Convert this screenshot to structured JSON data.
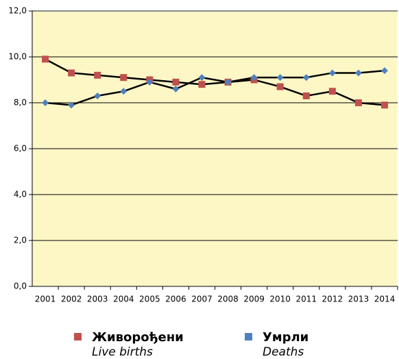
{
  "chart_data": {
    "type": "line",
    "categories": [
      "2001",
      "2002",
      "2003",
      "2004",
      "2005",
      "2006",
      "2007",
      "2008",
      "2009",
      "2010",
      "2011",
      "2012",
      "2013",
      "2014"
    ],
    "series": [
      {
        "name": "Живорођени",
        "name_en": "Live births",
        "color": "#c0504d",
        "marker": "square",
        "values": [
          9.9,
          9.3,
          9.2,
          9.1,
          9.0,
          8.9,
          8.8,
          8.9,
          9.0,
          8.7,
          8.3,
          8.5,
          8.0,
          7.9
        ]
      },
      {
        "name": "Умрли",
        "name_en": "Deaths",
        "color": "#4f81bd",
        "marker": "diamond",
        "values": [
          8.0,
          7.9,
          8.3,
          8.5,
          8.9,
          8.6,
          9.1,
          8.9,
          9.1,
          9.1,
          9.1,
          9.3,
          9.3,
          9.4
        ]
      }
    ],
    "ylim": [
      0,
      12
    ],
    "yticks": [
      {
        "value": 0,
        "label": "0,0"
      },
      {
        "value": 2,
        "label": "2,0"
      },
      {
        "value": 4,
        "label": "4,0"
      },
      {
        "value": 6,
        "label": "6,0"
      },
      {
        "value": 8,
        "label": "8,0"
      },
      {
        "value": 10,
        "label": "10,0"
      },
      {
        "value": 12,
        "label": "12,0"
      }
    ],
    "grid": true
  }
}
